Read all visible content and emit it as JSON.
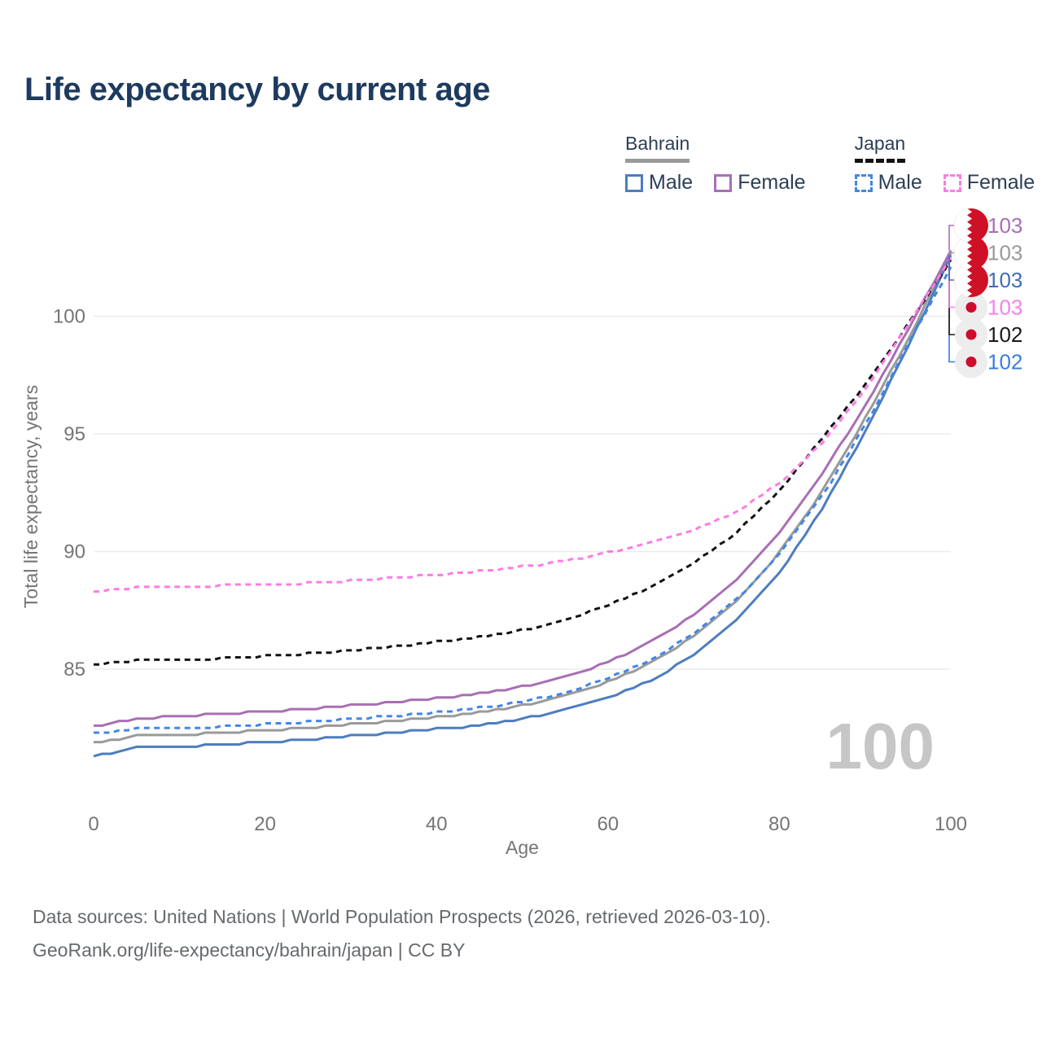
{
  "page": {
    "title": "Life expectancy by current age"
  },
  "legend": {
    "groups": [
      {
        "country": "Bahrain",
        "underline_style": "solid",
        "underline_color": "#9a9a9a",
        "items": [
          {
            "label": "Male",
            "swatch_color": "#4d7dbf",
            "dashed": false
          },
          {
            "label": "Female",
            "swatch_color": "#a86fb4",
            "dashed": false
          }
        ]
      },
      {
        "country": "Japan",
        "underline_style": "dashed",
        "underline_color": "#111111",
        "items": [
          {
            "label": "Male",
            "swatch_color": "#4286e8",
            "dashed": true
          },
          {
            "label": "Female",
            "swatch_color": "#fb7de4",
            "dashed": true
          }
        ]
      }
    ]
  },
  "chart_data": {
    "type": "line",
    "title": "Life expectancy by current age",
    "xlabel": "Age",
    "ylabel": "Total life expectancy, years",
    "x_ticks": [
      0,
      20,
      40,
      60,
      80,
      100
    ],
    "y_ticks": [
      85,
      90,
      95,
      100
    ],
    "xlim": [
      0,
      100
    ],
    "ylim": [
      81,
      103.5
    ],
    "grid": "horizontal",
    "age_watermark": "100",
    "anchor_ages": [
      0,
      5,
      10,
      15,
      20,
      25,
      30,
      35,
      40,
      45,
      50,
      55,
      60,
      65,
      70,
      75,
      80,
      85,
      90,
      95,
      100
    ],
    "series": [
      {
        "id": "bahrain_total",
        "name": "Bahrain (both sexes)",
        "country": "Bahrain",
        "sex": "Total",
        "color": "#9a9a9a",
        "dashed": false,
        "values": [
          81.85,
          82.15,
          82.2,
          82.3,
          82.4,
          82.5,
          82.65,
          82.8,
          82.95,
          83.15,
          83.45,
          83.85,
          84.45,
          85.25,
          86.4,
          87.9,
          89.95,
          92.55,
          95.65,
          99.0,
          102.65
        ]
      },
      {
        "id": "bahrain_female",
        "name": "Bahrain Female",
        "country": "Bahrain",
        "sex": "Female",
        "color": "#a86fb4",
        "dashed": false,
        "values": [
          82.55,
          82.9,
          83.0,
          83.1,
          83.2,
          83.3,
          83.45,
          83.6,
          83.75,
          83.95,
          84.25,
          84.65,
          85.3,
          86.15,
          87.3,
          88.8,
          90.8,
          93.3,
          96.2,
          99.4,
          102.8
        ]
      },
      {
        "id": "bahrain_male",
        "name": "Bahrain Male",
        "country": "Bahrain",
        "sex": "Male",
        "color": "#4d7dbf",
        "dashed": false,
        "values": [
          81.3,
          81.65,
          81.7,
          81.8,
          81.9,
          82.0,
          82.15,
          82.3,
          82.45,
          82.6,
          82.9,
          83.25,
          83.75,
          84.5,
          85.6,
          87.1,
          89.1,
          91.8,
          95.1,
          98.7,
          102.55
        ]
      },
      {
        "id": "japan_total",
        "name": "Japan (both sexes)",
        "country": "Japan",
        "sex": "Total",
        "color": "#111111",
        "dashed": true,
        "values": [
          85.2,
          85.35,
          85.4,
          85.45,
          85.55,
          85.65,
          85.8,
          85.95,
          86.15,
          86.35,
          86.65,
          87.1,
          87.7,
          88.5,
          89.5,
          90.8,
          92.6,
          94.8,
          97.1,
          99.65,
          102.35
        ]
      },
      {
        "id": "japan_female",
        "name": "Japan Female",
        "country": "Japan",
        "sex": "Female",
        "color": "#fb7de4",
        "dashed": true,
        "values": [
          88.3,
          88.45,
          88.5,
          88.55,
          88.6,
          88.65,
          88.75,
          88.9,
          89.0,
          89.15,
          89.35,
          89.6,
          89.95,
          90.4,
          90.9,
          91.7,
          92.9,
          94.6,
          96.9,
          99.6,
          102.5
        ]
      },
      {
        "id": "japan_male",
        "name": "Japan Male",
        "country": "Japan",
        "sex": "Male",
        "color": "#4286e8",
        "dashed": true,
        "values": [
          82.25,
          82.45,
          82.5,
          82.55,
          82.65,
          82.75,
          82.9,
          83.0,
          83.15,
          83.35,
          83.6,
          84.0,
          84.6,
          85.4,
          86.5,
          87.95,
          89.85,
          92.35,
          95.35,
          98.8,
          102.1
        ]
      }
    ],
    "end_labels": [
      {
        "text": "103",
        "color": "#a86fb4",
        "flag": "bahrain",
        "series": "bahrain_female"
      },
      {
        "text": "103",
        "color": "#9a9a9a",
        "flag": "bahrain",
        "series": "bahrain_total"
      },
      {
        "text": "103",
        "color": "#3f6db8",
        "flag": "bahrain",
        "series": "bahrain_male"
      },
      {
        "text": "103",
        "color": "#f97fe8",
        "flag": "japan",
        "series": "japan_female"
      },
      {
        "text": "102",
        "color": "#1a1a1a",
        "flag": "japan",
        "series": "japan_total"
      },
      {
        "text": "102",
        "color": "#3c7ce0",
        "flag": "japan",
        "series": "japan_male"
      }
    ]
  },
  "footer": {
    "line1": "Data sources: United Nations | World Population Prospects (2026, retrieved 2026-03-10).",
    "line2": "GeoRank.org/life-expectancy/bahrain/japan | CC BY"
  }
}
